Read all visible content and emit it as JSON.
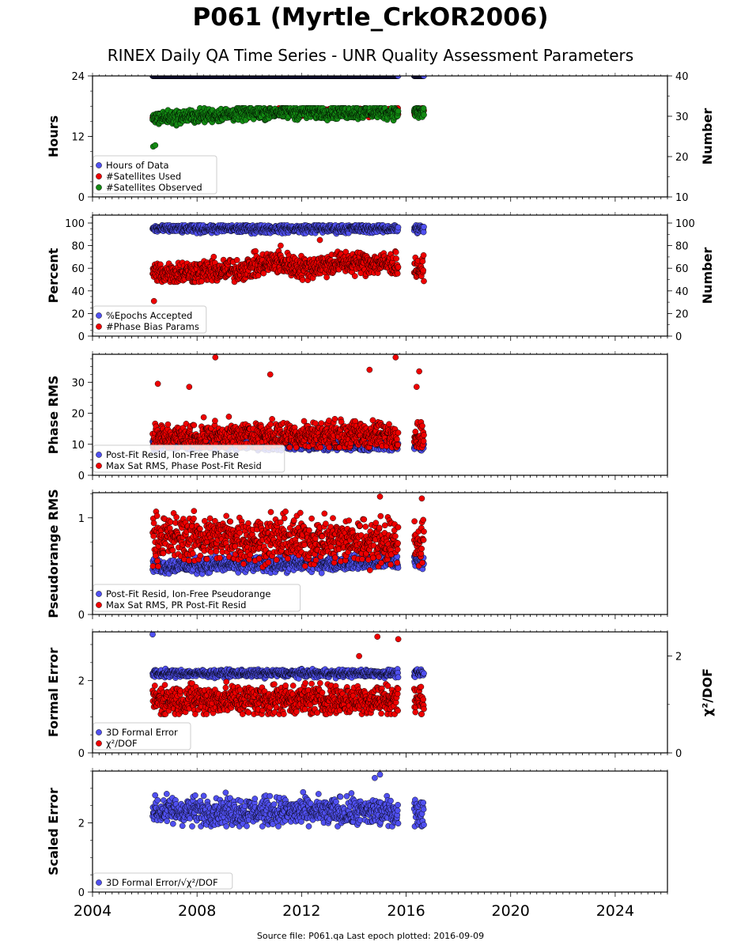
{
  "title": "P061 (Myrtle_CrkOR2006)",
  "subtitle": "RINEX Daily QA Time Series - UNR Quality Assessment Parameters",
  "source": "Source file: P061.qa Last epoch plotted: 2016-09-09",
  "colors": {
    "blue": "#5050f0",
    "red": "#ee0000",
    "green": "#138a13"
  },
  "chart_data": {
    "type": "scatter",
    "x_axis": {
      "range": [
        2004,
        2026
      ],
      "ticks": [
        2004,
        2008,
        2012,
        2016,
        2020,
        2024
      ],
      "tick_labels": [
        "2004",
        "2008",
        "2012",
        "2016",
        "2020",
        "2024"
      ]
    },
    "data_range": {
      "start": 2006.3,
      "gap": [
        2015.7,
        2016.3
      ],
      "end": 2016.69
    },
    "panels": [
      {
        "id": "hours",
        "ylabel": "Hours",
        "ylim": [
          0,
          24
        ],
        "yticks": [
          0,
          12,
          24
        ],
        "ytick_labels": [
          "0",
          "12",
          "24"
        ],
        "ylabel2": "Number",
        "ylim2": [
          10,
          40
        ],
        "yticks2": [
          10,
          20,
          30,
          40
        ],
        "ytick_labels2": [
          "10",
          "20",
          "30",
          "40"
        ],
        "legend": [
          "Hours of Data",
          "#Satellites Used",
          "#Satellites Observed"
        ],
        "series": [
          {
            "name": "Hours of Data",
            "color": "blue",
            "axis": "left",
            "min": 24,
            "max": 24,
            "segments": [
              [
                2006.35,
                24
              ],
              [
                2016.69,
                24
              ]
            ]
          },
          {
            "name": "#Satellites Used",
            "color": "red",
            "axis": "right",
            "min": 29,
            "max": 32,
            "segments": [
              [
                2006.35,
                29.5
              ],
              [
                2010.7,
                31
              ],
              [
                2016.69,
                31
              ]
            ]
          },
          {
            "name": "#Satellites Observed",
            "color": "green",
            "axis": "right",
            "min": 27,
            "max": 32,
            "segments": [
              [
                2006.35,
                29.5
              ],
              [
                2010.7,
                31
              ],
              [
                2016.69,
                31
              ]
            ],
            "outliers": [
              [
                2006.32,
                22.5
              ],
              [
                2006.4,
                22.8
              ]
            ]
          }
        ]
      },
      {
        "id": "percent",
        "ylabel": "Percent",
        "ylim": [
          0,
          107
        ],
        "yticks": [
          0,
          20,
          40,
          60,
          80,
          100
        ],
        "ytick_labels": [
          "0",
          "20",
          "40",
          "60",
          "80",
          "100"
        ],
        "ylabel2": "Number",
        "ylim2": [
          0,
          107
        ],
        "yticks2": [
          0,
          20,
          40,
          60,
          80,
          100
        ],
        "ytick_labels2": [
          "0",
          "20",
          "40",
          "60",
          "80",
          "100"
        ],
        "legend": [
          "%Epochs Accepted",
          "#Phase Bias Params"
        ],
        "series": [
          {
            "name": "%Epochs Accepted",
            "color": "blue",
            "axis": "left",
            "min": 87,
            "max": 98,
            "segments": [
              [
                2006.35,
                95
              ],
              [
                2016.69,
                95
              ]
            ]
          },
          {
            "name": "#Phase Bias Params",
            "color": "red",
            "axis": "right",
            "min": 48,
            "max": 78,
            "segments": [
              [
                2006.35,
                56
              ],
              [
                2009.5,
                58
              ],
              [
                2011.0,
                66
              ],
              [
                2012.0,
                60
              ],
              [
                2013.5,
                65
              ],
              [
                2015.6,
                64
              ],
              [
                2016.69,
                58
              ]
            ],
            "outliers": [
              [
                2006.35,
                31
              ],
              [
                2012.7,
                85
              ],
              [
                2011.2,
                80
              ]
            ]
          }
        ]
      },
      {
        "id": "phase",
        "ylabel": "Phase RMS",
        "ylim": [
          0,
          39
        ],
        "yticks": [
          0,
          10,
          20,
          30
        ],
        "ytick_labels": [
          "0",
          "10",
          "20",
          "30"
        ],
        "legend": [
          "Post-Fit Resid, Ion-Free Phase",
          "Max Sat RMS, Phase Post-Fit Resid"
        ],
        "series": [
          {
            "name": "Post-Fit Resid, Ion-Free Phase",
            "color": "blue",
            "axis": "left",
            "min": 8,
            "max": 13,
            "segments": [
              [
                2006.35,
                10
              ],
              [
                2016.69,
                9.5
              ]
            ]
          },
          {
            "name": "Max Sat RMS, Phase Post-Fit Resid",
            "color": "red",
            "axis": "left",
            "min": 9,
            "max": 22,
            "segments": [
              [
                2006.35,
                12
              ],
              [
                2011.0,
                13
              ],
              [
                2016.69,
                13
              ]
            ],
            "outliers": [
              [
                2008.7,
                38
              ],
              [
                2010.8,
                32.5
              ],
              [
                2014.6,
                34
              ],
              [
                2015.6,
                38
              ],
              [
                2016.5,
                33.5
              ],
              [
                2016.4,
                28.5
              ],
              [
                2007.7,
                28.5
              ],
              [
                2006.5,
                29.5
              ]
            ]
          }
        ]
      },
      {
        "id": "pseudorange",
        "ylabel": "Pseudorange RMS",
        "ylim": [
          0,
          1.26
        ],
        "yticks": [
          0,
          1
        ],
        "ytick_labels": [
          "0",
          "1"
        ],
        "legend": [
          "Post-Fit Resid, Ion-Free Pseudorange",
          "Max Sat RMS, PR Post-Fit Resid"
        ],
        "series": [
          {
            "name": "Post-Fit Resid, Ion-Free Pseudorange",
            "color": "blue",
            "axis": "left",
            "min": 0.42,
            "max": 0.65,
            "segments": [
              [
                2006.35,
                0.5
              ],
              [
                2016.69,
                0.55
              ]
            ]
          },
          {
            "name": "Max Sat RMS, PR Post-Fit Resid",
            "color": "red",
            "axis": "left",
            "min": 0.45,
            "max": 1.15,
            "segments": [
              [
                2006.35,
                0.8
              ],
              [
                2016.69,
                0.75
              ]
            ],
            "outliers": [
              [
                2015.0,
                1.22
              ],
              [
                2016.6,
                1.2
              ]
            ]
          }
        ]
      },
      {
        "id": "formal",
        "ylabel": "Formal Error",
        "ylim": [
          0,
          3.35
        ],
        "yticks": [
          0,
          2
        ],
        "ytick_labels": [
          "0",
          "2"
        ],
        "ylabel2": "χ²/DOF",
        "ylim2": [
          0,
          2.5
        ],
        "yticks2": [
          0,
          2
        ],
        "ytick_labels2": [
          "0",
          "2"
        ],
        "legend": [
          "3D Formal Error",
          "χ²/DOF"
        ],
        "series": [
          {
            "name": "3D Formal Error",
            "color": "blue",
            "axis": "left",
            "min": 2.05,
            "max": 2.35,
            "segments": [
              [
                2006.35,
                2.2
              ],
              [
                2016.69,
                2.2
              ]
            ],
            "outliers": [
              [
                2006.3,
                3.28
              ]
            ]
          },
          {
            "name": "χ²/DOF",
            "color": "red",
            "axis": "right",
            "min": 0.8,
            "max": 1.75,
            "segments": [
              [
                2006.35,
                1.1
              ],
              [
                2016.69,
                1.1
              ]
            ],
            "outliers": [
              [
                2014.2,
                2.0
              ],
              [
                2014.9,
                2.4
              ],
              [
                2015.7,
                2.35
              ]
            ]
          }
        ]
      },
      {
        "id": "scaled",
        "ylabel": "Scaled Error",
        "ylim": [
          0,
          3.5
        ],
        "yticks": [
          0,
          2
        ],
        "ytick_labels": [
          "0",
          "2"
        ],
        "legend": [
          "3D Formal Error/√χ²/DOF"
        ],
        "series": [
          {
            "name": "3D Formal Error/√χ²/DOF",
            "color": "blue",
            "axis": "left",
            "min": 1.9,
            "max": 3.1,
            "segments": [
              [
                2006.35,
                2.35
              ],
              [
                2016.69,
                2.3
              ]
            ],
            "outliers": [
              [
                2015.0,
                3.4
              ],
              [
                2014.8,
                3.3
              ]
            ]
          }
        ]
      }
    ]
  }
}
